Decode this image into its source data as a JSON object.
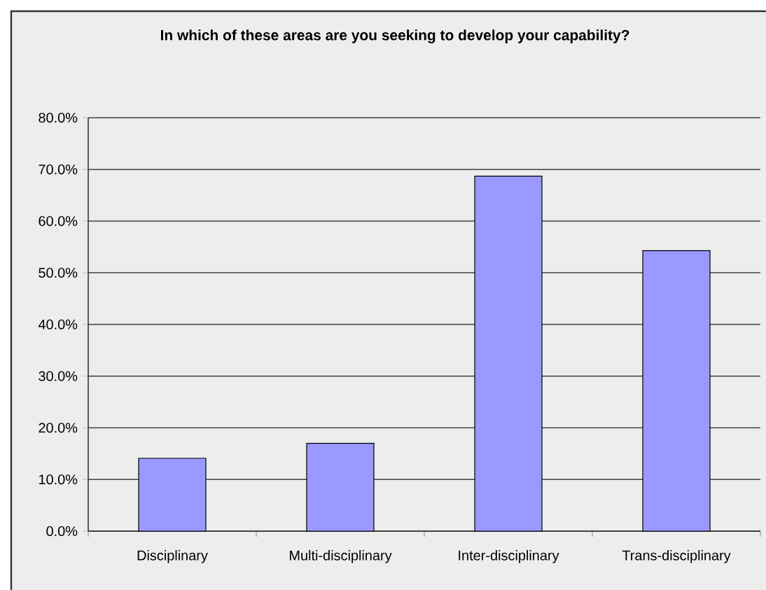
{
  "chart_data": {
    "type": "bar",
    "title": "In which of these areas are you seeking to develop your capability?",
    "categories": [
      "Disciplinary",
      "Multi-disciplinary",
      "Inter-disciplinary",
      "Trans-disciplinary"
    ],
    "values": [
      14.1,
      17.0,
      68.7,
      54.3
    ],
    "color": "#9999ff",
    "ylim": [
      0,
      80
    ],
    "yticks": [
      {
        "value": 0,
        "label": "0.0%"
      },
      {
        "value": 10,
        "label": "10.0%"
      },
      {
        "value": 20,
        "label": "20.0%"
      },
      {
        "value": 30,
        "label": "30.0%"
      },
      {
        "value": 40,
        "label": "40.0%"
      },
      {
        "value": 50,
        "label": "50.0%"
      },
      {
        "value": 60,
        "label": "60.0%"
      },
      {
        "value": 70,
        "label": "70.0%"
      },
      {
        "value": 80,
        "label": "80.0%"
      }
    ],
    "grid": "y"
  }
}
